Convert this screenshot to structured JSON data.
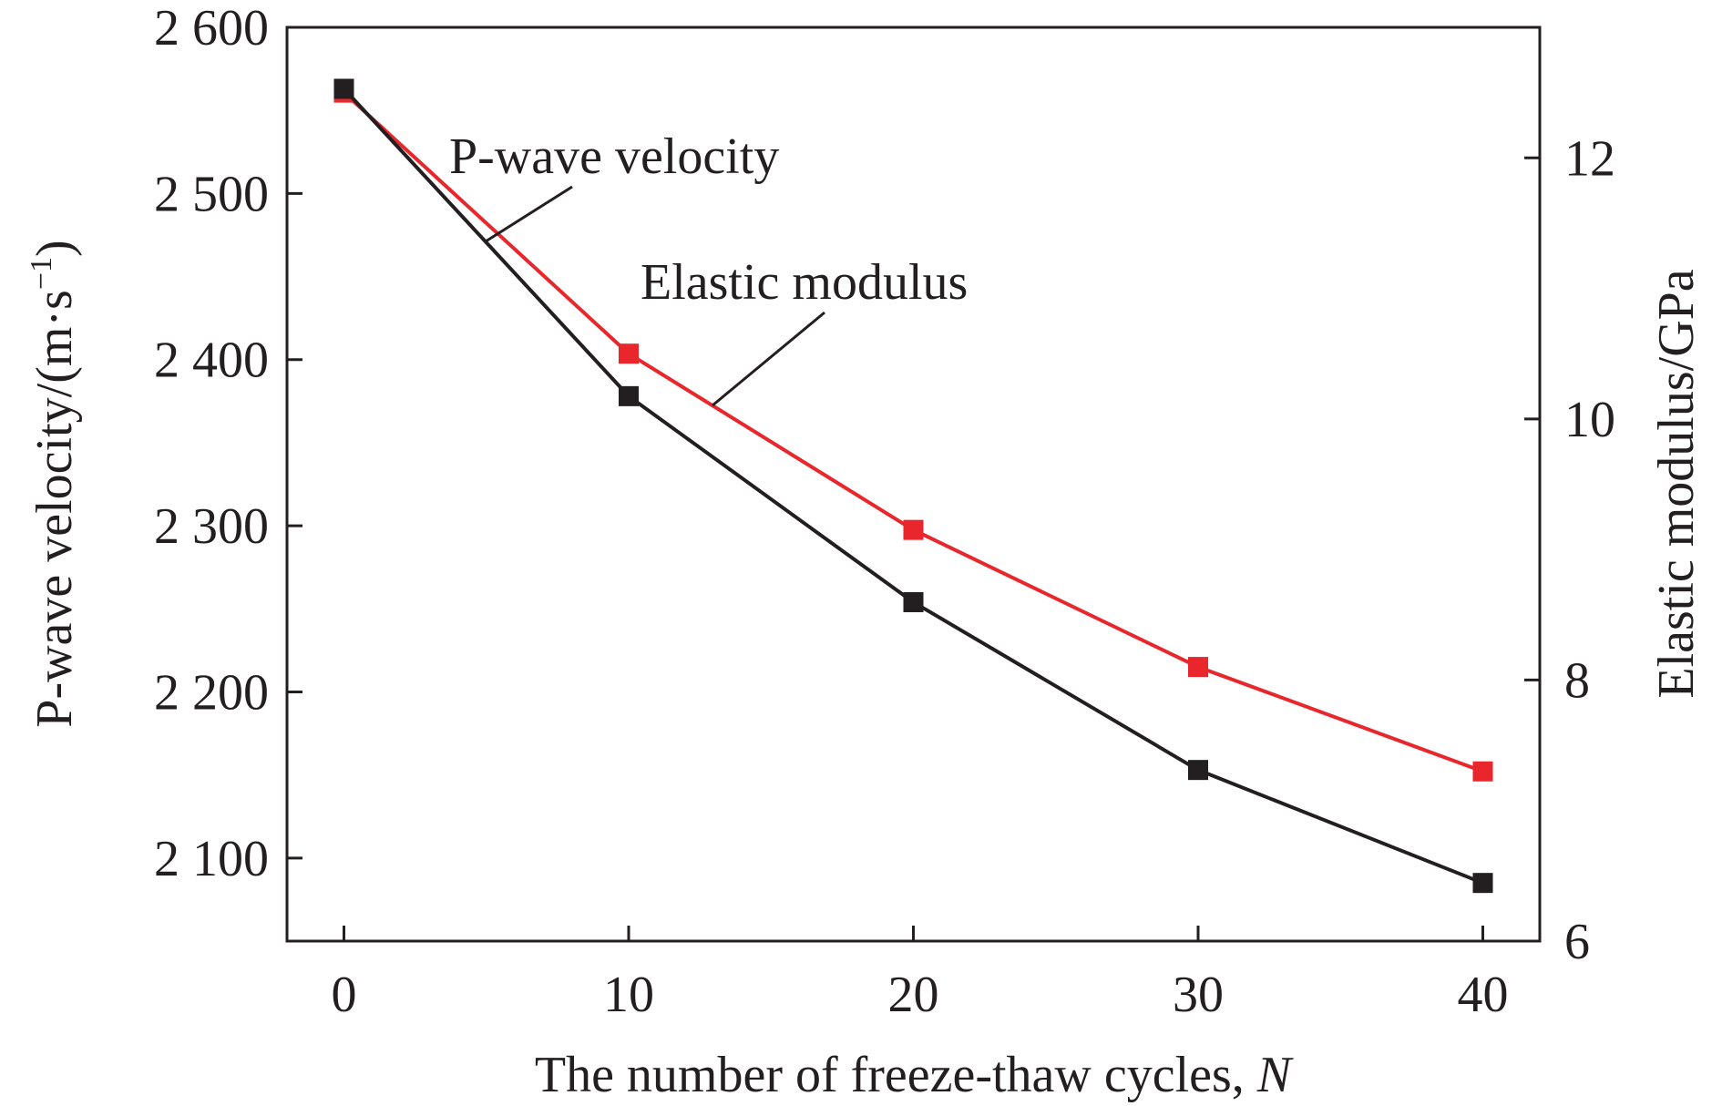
{
  "chart_data": {
    "type": "line",
    "xlabel_text": "The number of freeze-thaw cycles, ",
    "xlabel_var": "N",
    "ylabel_left": "P-wave velocity/(m·s",
    "ylabel_left_exp": "−1",
    "ylabel_left_close": ")",
    "ylabel_right": "Elastic modulus/GPa",
    "x_ticks": [
      0,
      10,
      20,
      30,
      40
    ],
    "x_tick_labels": [
      "0",
      "10",
      "20",
      "30",
      "40"
    ],
    "xlim": [
      -2,
      42
    ],
    "ylim_left": [
      2050,
      2600
    ],
    "y_ticks_left": [
      2100,
      2200,
      2300,
      2400,
      2500,
      2600
    ],
    "y_tick_labels_left": [
      "2 100",
      "2 200",
      "2 300",
      "2 400",
      "2 500",
      "2 600"
    ],
    "ylim_right": [
      6,
      13
    ],
    "y_ticks_right": [
      6,
      8,
      10,
      12
    ],
    "y_tick_labels_right": [
      "6",
      "8",
      "10",
      "12"
    ],
    "x": [
      0,
      10,
      20,
      30,
      40
    ],
    "series": [
      {
        "name": "P-wave velocity",
        "axis": "left",
        "color": "#231f20",
        "values": [
          2563,
          2378,
          2254,
          2153,
          2085
        ]
      },
      {
        "name": "Elastic modulus",
        "axis": "right",
        "color": "#e8262b",
        "values": [
          12.5,
          10.5,
          9.15,
          8.1,
          7.3
        ]
      }
    ],
    "annotations": [
      "P-wave velocity",
      "Elastic modulus"
    ],
    "grid": false,
    "legend": "none"
  }
}
